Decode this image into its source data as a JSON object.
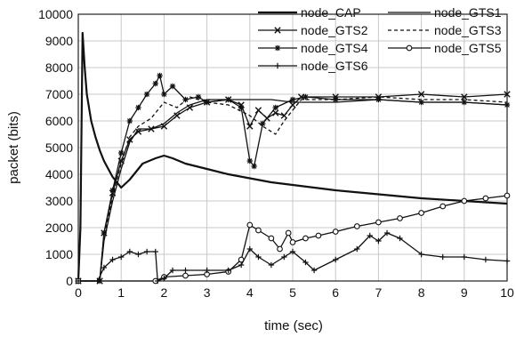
{
  "chart_data": {
    "type": "line",
    "xlabel": "time (sec)",
    "ylabel": "packet (bits)",
    "xlim": [
      0,
      10
    ],
    "ylim": [
      0,
      10000
    ],
    "x_ticks": [
      0,
      1,
      2,
      3,
      4,
      5,
      6,
      7,
      8,
      9,
      10
    ],
    "y_ticks": [
      0,
      1000,
      2000,
      3000,
      4000,
      5000,
      6000,
      7000,
      8000,
      9000,
      10000
    ],
    "grid": true,
    "legend_position": "top-right",
    "series": [
      {
        "name": "node_CAP",
        "style": "solid-thick",
        "x": [
          0,
          0.05,
          0.1,
          0.15,
          0.2,
          0.3,
          0.4,
          0.5,
          0.6,
          0.7,
          0.8,
          0.9,
          1.0,
          1.2,
          1.5,
          1.8,
          2.0,
          2.2,
          2.5,
          3.0,
          3.5,
          4.0,
          4.5,
          5.0,
          6.0,
          7.0,
          8.0,
          9.0,
          10.0
        ],
        "y": [
          0,
          2000,
          9300,
          8000,
          7000,
          6000,
          5400,
          4900,
          4500,
          4200,
          3900,
          3700,
          3500,
          3800,
          4400,
          4600,
          4700,
          4600,
          4400,
          4200,
          4000,
          3850,
          3700,
          3600,
          3400,
          3250,
          3100,
          3000,
          2900
        ]
      },
      {
        "name": "node_GTS1",
        "style": "solid",
        "x": [
          0,
          0.5,
          0.6,
          0.8,
          1.0,
          1.2,
          1.4,
          1.7,
          2.0,
          2.3,
          2.6,
          3.0,
          3.5,
          4.0,
          4.5,
          5.0,
          6.0,
          7.0,
          8.0,
          9.0,
          10.0
        ],
        "y": [
          0,
          0,
          1500,
          3000,
          4200,
          5200,
          5700,
          5700,
          5900,
          6300,
          6600,
          6800,
          6800,
          6800,
          6800,
          6700,
          6700,
          6800,
          6700,
          6700,
          6600
        ]
      },
      {
        "name": "node_GTS2",
        "style": "x-marker",
        "x": [
          0,
          0.5,
          0.6,
          0.8,
          1.0,
          1.2,
          1.4,
          1.7,
          2.0,
          2.3,
          2.6,
          3.0,
          3.5,
          3.8,
          4.0,
          4.2,
          4.4,
          4.6,
          4.8,
          5.0,
          5.2,
          6.0,
          7.0,
          8.0,
          9.0,
          10.0
        ],
        "y": [
          0,
          0,
          1800,
          3300,
          4500,
          5300,
          5600,
          5700,
          5800,
          6200,
          6500,
          6700,
          6800,
          6600,
          5800,
          6400,
          6100,
          6300,
          6200,
          6600,
          6900,
          6900,
          6900,
          7000,
          6900,
          7000
        ]
      },
      {
        "name": "node_GTS3",
        "style": "dashed",
        "x": [
          0,
          0.5,
          0.6,
          0.8,
          1.0,
          1.2,
          1.4,
          1.7,
          2.0,
          2.3,
          2.6,
          3.0,
          3.5,
          4.0,
          4.3,
          4.6,
          4.8,
          5.0,
          5.2,
          6.0,
          7.0,
          8.0,
          9.0,
          10.0
        ],
        "y": [
          0,
          0,
          1600,
          3200,
          4400,
          5400,
          5800,
          6100,
          6700,
          6500,
          6900,
          6700,
          6600,
          6200,
          5800,
          5500,
          6000,
          6400,
          6800,
          6800,
          6900,
          6800,
          6800,
          6700
        ]
      },
      {
        "name": "node_GTS4",
        "style": "star-marker",
        "x": [
          0,
          0.5,
          0.6,
          0.8,
          1.0,
          1.2,
          1.4,
          1.6,
          1.8,
          1.9,
          2.0,
          2.2,
          2.5,
          2.8,
          3.0,
          3.5,
          3.8,
          4.0,
          4.1,
          4.3,
          4.6,
          5.0,
          5.3,
          6.0,
          7.0,
          8.0,
          9.0,
          10.0
        ],
        "y": [
          0,
          0,
          1800,
          3400,
          4800,
          6000,
          6500,
          7000,
          7400,
          7700,
          7000,
          7300,
          6800,
          6900,
          6700,
          6800,
          6500,
          4500,
          4300,
          5900,
          6500,
          6800,
          6900,
          6800,
          6800,
          6700,
          6700,
          6600
        ]
      },
      {
        "name": "node_GTS5",
        "style": "circle-marker",
        "x": [
          0,
          1.8,
          2.0,
          2.5,
          3.0,
          3.5,
          3.8,
          4.0,
          4.2,
          4.5,
          4.7,
          4.9,
          5.0,
          5.3,
          5.6,
          6.0,
          6.5,
          7.0,
          7.5,
          8.0,
          8.5,
          9.0,
          9.5,
          10.0
        ],
        "y": [
          0,
          0,
          150,
          200,
          250,
          350,
          800,
          2100,
          1900,
          1600,
          1200,
          1800,
          1450,
          1600,
          1700,
          1850,
          2050,
          2200,
          2350,
          2550,
          2800,
          3000,
          3100,
          3200
        ]
      },
      {
        "name": "node_GTS6",
        "style": "plus-marker",
        "x": [
          0,
          0.45,
          0.6,
          0.8,
          1.0,
          1.2,
          1.4,
          1.6,
          1.8,
          1.85,
          2.0,
          2.2,
          2.5,
          3.0,
          3.5,
          3.8,
          4.0,
          4.2,
          4.5,
          4.8,
          5.0,
          5.3,
          5.5,
          6.0,
          6.5,
          6.8,
          7.0,
          7.2,
          7.5,
          8.0,
          8.5,
          9.0,
          9.5,
          10.0
        ],
        "y": [
          0,
          0,
          500,
          800,
          900,
          1100,
          1000,
          1100,
          1100,
          0,
          100,
          400,
          400,
          400,
          400,
          600,
          1200,
          900,
          600,
          900,
          1100,
          700,
          400,
          800,
          1200,
          1700,
          1500,
          1800,
          1600,
          1000,
          900,
          900,
          800,
          750
        ]
      }
    ]
  }
}
